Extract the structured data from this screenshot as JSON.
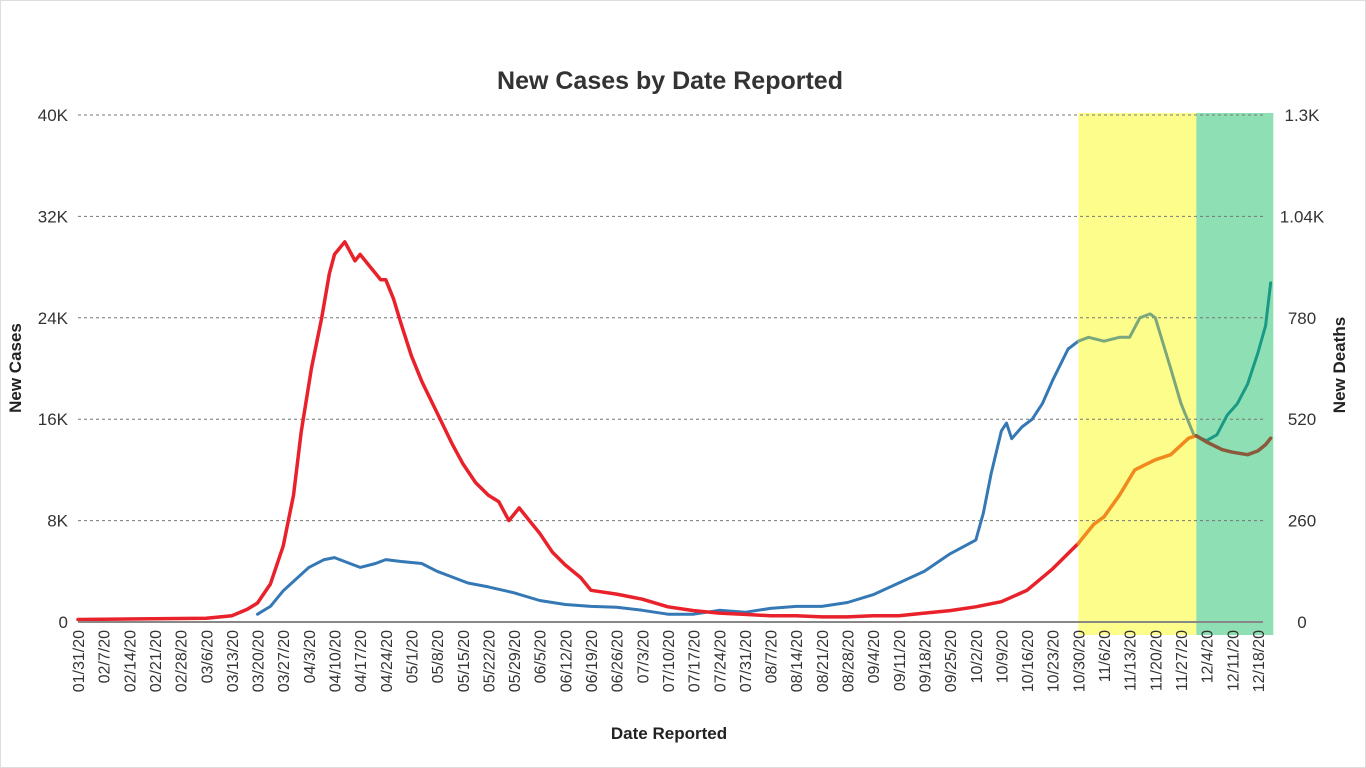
{
  "chart_data": {
    "type": "line",
    "title": "New Cases by Date Reported",
    "xlabel": "Date Reported",
    "ylabel": "New Cases",
    "y2label": "New Deaths",
    "ylim": [
      0,
      40000
    ],
    "y2lim": [
      0,
      1300
    ],
    "grid": true,
    "y_ticks": [
      "0",
      "8K",
      "16K",
      "24K",
      "32K",
      "40K"
    ],
    "y2_ticks": [
      "0",
      "260",
      "520",
      "780",
      "1.04K",
      "1.3K"
    ],
    "x_ticks": [
      "01/31/20",
      "02/7/20",
      "02/14/20",
      "02/21/20",
      "02/28/20",
      "03/6/20",
      "03/13/20",
      "03/20/20",
      "03/27/20",
      "04/3/20",
      "04/10/20",
      "04/17/20",
      "04/24/20",
      "05/1/20",
      "05/8/20",
      "05/15/20",
      "05/22/20",
      "05/29/20",
      "06/5/20",
      "06/12/20",
      "06/19/20",
      "06/26/20",
      "07/3/20",
      "07/10/20",
      "07/17/20",
      "07/24/20",
      "07/31/20",
      "08/7/20",
      "08/14/20",
      "08/21/20",
      "08/28/20",
      "09/4/20",
      "09/11/20",
      "09/18/20",
      "09/25/20",
      "10/2/20",
      "10/9/20",
      "10/16/20",
      "10/23/20",
      "10/30/20",
      "11/6/20",
      "11/13/20",
      "11/20/20",
      "11/27/20",
      "12/4/20",
      "12/11/20",
      "12/18/20"
    ],
    "highlight_bands": [
      {
        "from_week": 39,
        "to_week": 43.6,
        "color": "#fdfd8c"
      },
      {
        "from_week": 43.6,
        "to_week": 46.6,
        "color": "#8edfb4"
      }
    ],
    "series": [
      {
        "axis": "left",
        "color": "#e8212b",
        "highlight_colors": [
          "#f08a1e",
          "#8b5a3c"
        ],
        "points": [
          [
            0,
            200
          ],
          [
            5,
            300
          ],
          [
            6,
            500
          ],
          [
            6.6,
            1000
          ],
          [
            7,
            1500
          ],
          [
            7.5,
            3000
          ],
          [
            8,
            6000
          ],
          [
            8.4,
            10000
          ],
          [
            8.7,
            15000
          ],
          [
            9.1,
            20000
          ],
          [
            9.5,
            24000
          ],
          [
            9.8,
            27500
          ],
          [
            10,
            29000
          ],
          [
            10.4,
            30000
          ],
          [
            10.8,
            28500
          ],
          [
            11,
            29000
          ],
          [
            11.4,
            28000
          ],
          [
            11.8,
            27000
          ],
          [
            12,
            27000
          ],
          [
            12.3,
            25500
          ],
          [
            12.6,
            23500
          ],
          [
            13,
            21000
          ],
          [
            13.4,
            19000
          ],
          [
            14,
            16500
          ],
          [
            14.6,
            14000
          ],
          [
            15,
            12500
          ],
          [
            15.5,
            11000
          ],
          [
            16,
            10000
          ],
          [
            16.4,
            9500
          ],
          [
            16.8,
            8000
          ],
          [
            17.2,
            9000
          ],
          [
            17.6,
            8000
          ],
          [
            18,
            7000
          ],
          [
            18.5,
            5500
          ],
          [
            19,
            4500
          ],
          [
            19.6,
            3500
          ],
          [
            20,
            2500
          ],
          [
            21,
            2200
          ],
          [
            22,
            1800
          ],
          [
            23,
            1200
          ],
          [
            24,
            900
          ],
          [
            25,
            700
          ],
          [
            26,
            600
          ],
          [
            27,
            500
          ],
          [
            28,
            500
          ],
          [
            29,
            400
          ],
          [
            30,
            400
          ],
          [
            31,
            500
          ],
          [
            32,
            500
          ],
          [
            33,
            700
          ],
          [
            34,
            900
          ],
          [
            35,
            1200
          ],
          [
            36,
            1600
          ],
          [
            37,
            2500
          ],
          [
            38,
            4200
          ],
          [
            39,
            6200
          ],
          [
            39.6,
            7700
          ],
          [
            40,
            8300
          ],
          [
            40.6,
            10000
          ],
          [
            41.2,
            12000
          ],
          [
            42,
            12800
          ],
          [
            42.6,
            13200
          ],
          [
            43.3,
            14500
          ],
          [
            43.6,
            14700
          ],
          [
            44,
            14200
          ],
          [
            44.6,
            13600
          ],
          [
            45,
            13400
          ],
          [
            45.6,
            13200
          ],
          [
            46,
            13500
          ],
          [
            46.3,
            14000
          ],
          [
            46.5,
            14500
          ]
        ]
      },
      {
        "axis": "right",
        "color": "#3478b5",
        "highlight_colors": [
          "#7ba77d",
          "#1a9a84"
        ],
        "points": [
          [
            7,
            20
          ],
          [
            7.5,
            40
          ],
          [
            8,
            80
          ],
          [
            8.5,
            110
          ],
          [
            9,
            140
          ],
          [
            9.6,
            160
          ],
          [
            10,
            165
          ],
          [
            10.6,
            150
          ],
          [
            11,
            140
          ],
          [
            11.6,
            150
          ],
          [
            12,
            160
          ],
          [
            12.6,
            155
          ],
          [
            13.4,
            150
          ],
          [
            14,
            130
          ],
          [
            14.6,
            115
          ],
          [
            15.2,
            100
          ],
          [
            16,
            90
          ],
          [
            17,
            75
          ],
          [
            18,
            55
          ],
          [
            19,
            45
          ],
          [
            20,
            40
          ],
          [
            21,
            38
          ],
          [
            22,
            30
          ],
          [
            23,
            20
          ],
          [
            24,
            20
          ],
          [
            25,
            30
          ],
          [
            26,
            25
          ],
          [
            27,
            35
          ],
          [
            28,
            40
          ],
          [
            29,
            40
          ],
          [
            30,
            50
          ],
          [
            31,
            70
          ],
          [
            32,
            100
          ],
          [
            33,
            130
          ],
          [
            34,
            175
          ],
          [
            35,
            210
          ],
          [
            35.3,
            280
          ],
          [
            35.6,
            380
          ],
          [
            36,
            490
          ],
          [
            36.2,
            510
          ],
          [
            36.4,
            470
          ],
          [
            36.8,
            500
          ],
          [
            37.2,
            520
          ],
          [
            37.6,
            560
          ],
          [
            38,
            620
          ],
          [
            38.6,
            700
          ],
          [
            39,
            720
          ],
          [
            39.4,
            730
          ],
          [
            40,
            720
          ],
          [
            40.6,
            730
          ],
          [
            41,
            730
          ],
          [
            41.4,
            780
          ],
          [
            41.8,
            790
          ],
          [
            42,
            780
          ],
          [
            42.6,
            650
          ],
          [
            43,
            560
          ],
          [
            43.5,
            480
          ],
          [
            43.8,
            470
          ],
          [
            44,
            465
          ],
          [
            44.4,
            480
          ],
          [
            44.8,
            530
          ],
          [
            45.2,
            560
          ],
          [
            45.6,
            610
          ],
          [
            46,
            690
          ],
          [
            46.3,
            760
          ],
          [
            46.5,
            870
          ]
        ]
      }
    ]
  }
}
